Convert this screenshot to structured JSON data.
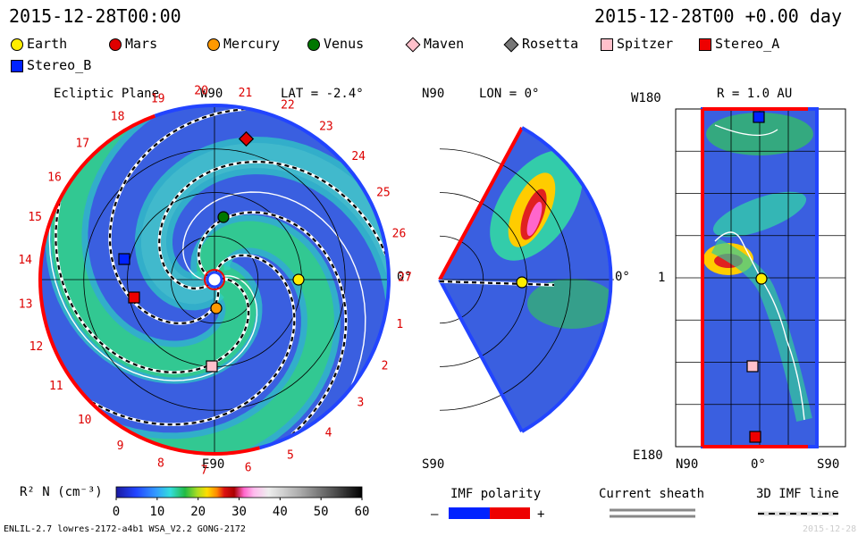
{
  "header": {
    "left": "2015-12-28T00:00",
    "right": "2015-12-28T00 +0.00 day"
  },
  "legend": [
    {
      "name": "Earth",
      "color": "#ffee00",
      "shape": "circle"
    },
    {
      "name": "Mars",
      "color": "#e00000",
      "shape": "circle"
    },
    {
      "name": "Mercury",
      "color": "#ff9900",
      "shape": "circle"
    },
    {
      "name": "Venus",
      "color": "#007700",
      "shape": "circle"
    },
    {
      "name": "Maven",
      "color": "#ffc0cb",
      "shape": "diamond"
    },
    {
      "name": "Rosetta",
      "color": "#777777",
      "shape": "diamond"
    },
    {
      "name": "Spitzer",
      "color": "#ffc0cb",
      "shape": "square"
    },
    {
      "name": "Stereo_A",
      "color": "#ee0000",
      "shape": "square"
    },
    {
      "name": "Stereo_B",
      "color": "#0022ff",
      "shape": "square"
    }
  ],
  "panels": {
    "ecliptic": {
      "title": "Ecliptic Plane",
      "top": "W90",
      "bottom": "E90",
      "right": "0°",
      "lat": "LAT = -2.4°"
    },
    "meridional": {
      "top": "N90",
      "bottom": "S90",
      "right": "0°",
      "lon": "LON = 0°"
    },
    "radial": {
      "title": "R = 1.0 AU",
      "top_left": "W180",
      "mid_left": "1",
      "bottom_left": "E180",
      "x_left": "N90",
      "x_mid": "0°",
      "x_right": "S90"
    }
  },
  "footer": {
    "colorbar_label": "R² N (cm⁻³)",
    "imf_polarity": "IMF polarity",
    "imf_minus": "–",
    "imf_plus": "+",
    "current_sheath": "Current sheath",
    "imf_line": "3D IMF line",
    "bottom_left": "ENLIL-2.7 lowres-2172-a4b1 WSA_V2.2 GONG-2172",
    "bottom_right": "2015-12-28"
  },
  "colors": {
    "background": "#3355dd",
    "boundary_red": "#ff0000",
    "boundary_blue": "#2244ff"
  },
  "chart_data": [
    {
      "type": "heatmap",
      "title": "Ecliptic Plane",
      "quantity": "R² N (cm⁻³)",
      "sector_labels": [
        "1",
        "2",
        "3",
        "4",
        "5",
        "6",
        "7",
        "8",
        "9",
        "10",
        "11",
        "12",
        "13",
        "14",
        "15",
        "16",
        "17",
        "18",
        "19",
        "20",
        "21",
        "22",
        "23",
        "24",
        "25",
        "26",
        "27"
      ],
      "bodies": [
        "Earth",
        "Mars",
        "Mercury",
        "Venus",
        "Maven",
        "Spitzer",
        "Stereo_A",
        "Stereo_B"
      ]
    },
    {
      "type": "heatmap",
      "title": "LON = 0°",
      "quantity": "R² N (cm⁻³)",
      "bodies": [
        "Earth"
      ]
    },
    {
      "type": "heatmap",
      "title": "R = 1.0 AU",
      "quantity": "R² N (cm⁻³)",
      "bodies": [
        "Earth",
        "Spitzer",
        "Stereo_A",
        "Stereo_B"
      ]
    },
    {
      "type": "colorbar",
      "label": "R² N (cm⁻³)",
      "ticks": [
        0,
        10,
        20,
        30,
        40,
        50,
        60
      ],
      "range": [
        0,
        60
      ]
    }
  ]
}
